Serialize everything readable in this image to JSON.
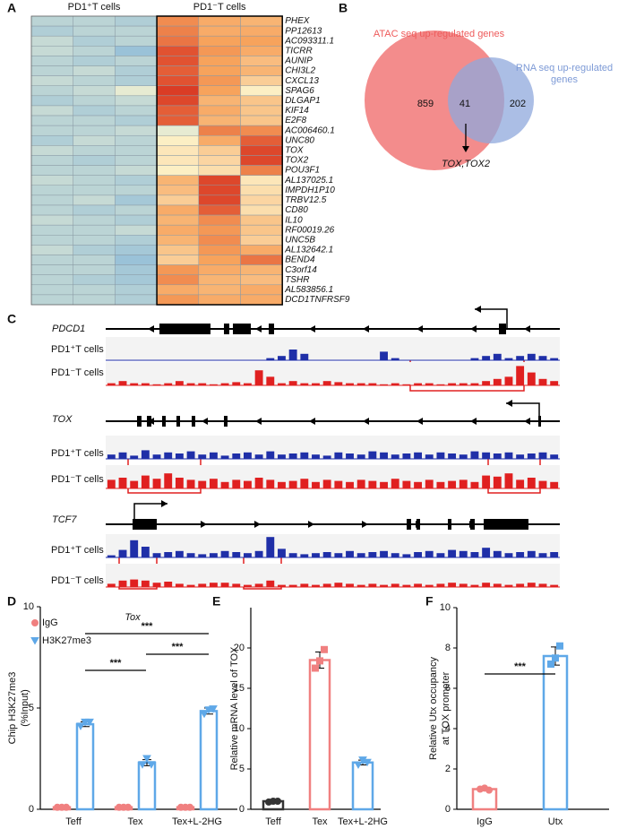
{
  "panel_labels": [
    "A",
    "B",
    "C",
    "D",
    "E",
    "F"
  ],
  "heatmap": {
    "groups": [
      "PD1⁺T cells",
      "PD1⁻T cells"
    ],
    "colorscale": {
      "zlim": [
        -1,
        2
      ],
      "colors": [
        "#8fbcd9",
        "#fdf7d0",
        "#f7a35c",
        "#d7301f"
      ]
    },
    "genes": [
      "PHEX",
      "PP12613",
      "AC093311.1",
      "TICRR",
      "AUNIP",
      "CHI3L2",
      "CXCL13",
      "SPAG6",
      "DLGAP1",
      "KIF14",
      "E2F8",
      "AC006460.1",
      "UNC80",
      "TOX",
      "TOX2",
      "POU3F1",
      "AL137025.1",
      "IMPDH1P10",
      "TRBV12.5",
      "CD80",
      "IL10",
      "RF00019.26",
      "UNC5B",
      "AL132642.1",
      "BEND4",
      "C3orf14",
      "TSHR",
      "AL583856.1",
      "DCD1TNFRSF9"
    ],
    "values": [
      [
        -0.6,
        -0.6,
        -0.7,
        1.2,
        0.9,
        0.8
      ],
      [
        -0.7,
        -0.6,
        -0.6,
        1.3,
        0.9,
        0.9
      ],
      [
        -0.5,
        -0.7,
        -0.6,
        1.4,
        1.0,
        1.0
      ],
      [
        -0.5,
        -0.6,
        -0.9,
        1.7,
        1.1,
        0.9
      ],
      [
        -0.6,
        -0.7,
        -0.6,
        1.7,
        1.0,
        0.7
      ],
      [
        -0.6,
        -0.5,
        -0.7,
        1.6,
        1.0,
        0.8
      ],
      [
        -0.5,
        -0.6,
        -0.7,
        1.7,
        1.1,
        0.5
      ],
      [
        -0.6,
        -0.5,
        -0.2,
        1.9,
        1.0,
        0.1
      ],
      [
        -0.7,
        -0.6,
        -0.5,
        1.8,
        0.8,
        0.6
      ],
      [
        -0.5,
        -0.7,
        -0.6,
        1.6,
        0.9,
        0.6
      ],
      [
        -0.6,
        -0.6,
        -0.7,
        1.6,
        0.8,
        0.6
      ],
      [
        -0.6,
        -0.6,
        -0.5,
        -0.2,
        1.3,
        1.2
      ],
      [
        -0.7,
        -0.5,
        -0.6,
        0.1,
        0.9,
        1.6
      ],
      [
        -0.5,
        -0.6,
        -0.6,
        0.2,
        0.5,
        1.8
      ],
      [
        -0.6,
        -0.7,
        -0.6,
        0.2,
        0.4,
        1.8
      ],
      [
        -0.6,
        -0.6,
        -0.5,
        0.1,
        0.3,
        1.3
      ],
      [
        -0.5,
        -0.6,
        -0.7,
        0.8,
        1.8,
        0.2
      ],
      [
        -0.6,
        -0.6,
        -0.6,
        0.7,
        1.8,
        0.3
      ],
      [
        -0.6,
        -0.5,
        -0.8,
        0.5,
        1.8,
        0.4
      ],
      [
        -0.6,
        -0.7,
        -0.6,
        0.9,
        1.6,
        0.3
      ],
      [
        -0.5,
        -0.6,
        -0.7,
        0.8,
        1.2,
        0.6
      ],
      [
        -0.6,
        -0.6,
        -0.5,
        0.9,
        1.1,
        0.6
      ],
      [
        -0.6,
        -0.6,
        -0.7,
        0.8,
        1.2,
        0.5
      ],
      [
        -0.5,
        -0.7,
        -0.8,
        0.6,
        1.1,
        0.9
      ],
      [
        -0.6,
        -0.6,
        -0.9,
        0.5,
        1.0,
        1.4
      ],
      [
        -0.6,
        -0.6,
        -0.8,
        1.1,
        0.9,
        0.8
      ],
      [
        -0.6,
        -0.7,
        -0.8,
        1.2,
        0.8,
        0.7
      ],
      [
        -0.6,
        -0.6,
        -0.7,
        0.9,
        0.8,
        0.9
      ],
      [
        -0.6,
        -0.6,
        -0.7,
        1.1,
        0.9,
        0.9
      ]
    ]
  },
  "venn": {
    "atac_label": "ATAC seq up-regulated genes",
    "rna_label": [
      "RNA seq up-regulated",
      "genes"
    ],
    "atac_only": "859",
    "overlap": "41",
    "rna_only": "202",
    "overlap_genes": "TOX,TOX2",
    "atac_color": "#f38c8c",
    "rna_color": "#8fa8dc"
  },
  "tracks": {
    "genes": [
      {
        "name": "PDCD1",
        "rows": [
          {
            "label": "PD1⁺T cells",
            "color": "#1f2fa8",
            "values": [
              0,
              0,
              0,
              0,
              0,
              0,
              0,
              0,
              0,
              0,
              0,
              0,
              0,
              0,
              0.1,
              0.2,
              0.5,
              0.3,
              0,
              0,
              0,
              0,
              0,
              0,
              0.4,
              0.1,
              0,
              0,
              0,
              0,
              0,
              0,
              0.1,
              0.2,
              0.3,
              0.1,
              0.2,
              0.3,
              0.2,
              0.1
            ]
          },
          {
            "label": "PD1⁻T cells",
            "color": "#e02020",
            "values": [
              0.1,
              0.2,
              0.1,
              0.1,
              0.05,
              0.1,
              0.2,
              0.1,
              0.1,
              0.05,
              0.1,
              0.15,
              0.1,
              0.7,
              0.4,
              0.1,
              0.2,
              0.1,
              0.1,
              0.2,
              0.15,
              0.1,
              0.1,
              0.1,
              0.05,
              0.1,
              0.05,
              0.1,
              0.1,
              0.05,
              0.1,
              0.1,
              0.1,
              0.2,
              0.3,
              0.4,
              0.9,
              0.6,
              0.3,
              0.2
            ]
          }
        ]
      },
      {
        "name": "TOX",
        "rows": [
          {
            "label": "PD1⁺T cells",
            "color": "#1f2fa8",
            "values": [
              0.2,
              0.3,
              0.15,
              0.4,
              0.2,
              0.3,
              0.25,
              0.35,
              0.2,
              0.3,
              0.15,
              0.25,
              0.3,
              0.2,
              0.35,
              0.2,
              0.25,
              0.3,
              0.2,
              0.15,
              0.3,
              0.25,
              0.2,
              0.35,
              0.3,
              0.2,
              0.25,
              0.3,
              0.2,
              0.3,
              0.25,
              0.2,
              0.35,
              0.3,
              0.25,
              0.3,
              0.2,
              0.25,
              0.3,
              0.2
            ]
          },
          {
            "label": "PD1⁻T cells",
            "color": "#e02020",
            "values": [
              0.4,
              0.5,
              0.35,
              0.6,
              0.45,
              0.7,
              0.5,
              0.4,
              0.35,
              0.45,
              0.3,
              0.4,
              0.35,
              0.5,
              0.4,
              0.3,
              0.35,
              0.45,
              0.3,
              0.4,
              0.35,
              0.3,
              0.4,
              0.35,
              0.3,
              0.45,
              0.35,
              0.3,
              0.4,
              0.3,
              0.35,
              0.4,
              0.3,
              0.6,
              0.55,
              0.7,
              0.4,
              0.5,
              0.35,
              0.3
            ]
          }
        ]
      },
      {
        "name": "TCF7",
        "rows": [
          {
            "label": "PD1⁺T cells",
            "color": "#1f2fa8",
            "values": [
              0.1,
              0.35,
              0.8,
              0.5,
              0.2,
              0.25,
              0.3,
              0.2,
              0.15,
              0.2,
              0.3,
              0.25,
              0.2,
              0.3,
              0.95,
              0.4,
              0.2,
              0.15,
              0.2,
              0.25,
              0.2,
              0.3,
              0.2,
              0.25,
              0.3,
              0.2,
              0.15,
              0.25,
              0.3,
              0.2,
              0.35,
              0.3,
              0.25,
              0.45,
              0.3,
              0.2,
              0.25,
              0.3,
              0.2,
              0.25
            ]
          },
          {
            "label": "PD1⁻T cells",
            "color": "#e02020",
            "values": [
              0.15,
              0.3,
              0.35,
              0.3,
              0.2,
              0.25,
              0.15,
              0.1,
              0.15,
              0.2,
              0.2,
              0.15,
              0.1,
              0.15,
              0.3,
              0.1,
              0.1,
              0.15,
              0.1,
              0.15,
              0.2,
              0.15,
              0.1,
              0.15,
              0.1,
              0.15,
              0.1,
              0.15,
              0.1,
              0.15,
              0.2,
              0.15,
              0.1,
              0.2,
              0.15,
              0.1,
              0.15,
              0.2,
              0.15,
              0.1
            ]
          }
        ]
      }
    ]
  },
  "chart_data": [
    {
      "type": "bar",
      "title": "Tox",
      "ylabel": [
        "Chip H3K27me3",
        "(%Input)"
      ],
      "categories": [
        "Teff",
        "Tex",
        "Tex+L-2HG"
      ],
      "ylim": [
        0,
        10
      ],
      "yticks": [
        0,
        5,
        10
      ],
      "legend": "upper left",
      "series": [
        {
          "name": "IgG",
          "color": "#f08080",
          "marker": "circle",
          "values": [
            0.1,
            0.1,
            0.1
          ],
          "errors": [
            0.03,
            0.03,
            0.03
          ],
          "points": [
            [
              0.1,
              0.1,
              0.1
            ],
            [
              0.1,
              0.1,
              0.1
            ],
            [
              0.1,
              0.1,
              0.1
            ]
          ]
        },
        {
          "name": "H3K27me3",
          "color": "#5fa8e8",
          "marker": "triangle",
          "values": [
            4.2,
            2.3,
            4.85
          ],
          "errors": [
            0.12,
            0.15,
            0.15
          ],
          "points": [
            [
              4.1,
              4.3,
              4.3
            ],
            [
              2.2,
              2.5,
              2.2
            ],
            [
              4.7,
              4.9,
              4.95
            ]
          ]
        }
      ],
      "significance": [
        "***",
        "***",
        "***"
      ]
    },
    {
      "type": "bar",
      "ylabel": "Relative mRNA level of TOX",
      "categories": [
        "Teff",
        "Tex",
        "Tex+L-2HG"
      ],
      "ylim": [
        0,
        25
      ],
      "yticks": [
        0,
        5,
        10,
        15,
        20
      ],
      "values": [
        1.0,
        18.5,
        5.8
      ],
      "errors": [
        0.1,
        1.0,
        0.3
      ],
      "colors": [
        "#333333",
        "#f08080",
        "#5fa8e8"
      ],
      "markers": [
        "circle",
        "square",
        "triangle"
      ],
      "points": [
        [
          0.9,
          1.0,
          1.0
        ],
        [
          17.5,
          18.4,
          19.8
        ],
        [
          5.5,
          6.1,
          5.8
        ]
      ]
    },
    {
      "type": "bar",
      "ylabel": [
        "Relative Utx occupancy",
        "at TOX promoter"
      ],
      "categories": [
        "IgG",
        "Utx"
      ],
      "ylim": [
        0,
        10
      ],
      "yticks": [
        0,
        2,
        4,
        6,
        8,
        10
      ],
      "values": [
        1.0,
        7.6
      ],
      "errors": [
        0.08,
        0.45
      ],
      "colors": [
        "#f08080",
        "#5fa8e8"
      ],
      "markers": [
        "circle",
        "square"
      ],
      "points": [
        [
          1.0,
          1.05,
          0.95
        ],
        [
          7.2,
          7.5,
          8.1
        ]
      ],
      "significance": [
        "***"
      ]
    }
  ]
}
